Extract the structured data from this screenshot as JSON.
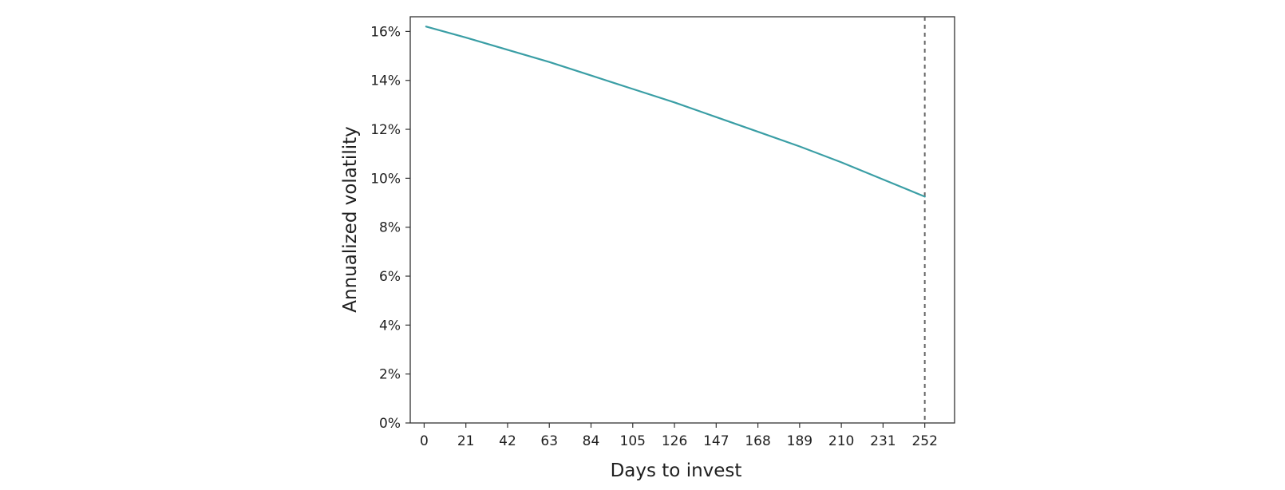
{
  "chart_data": {
    "type": "line",
    "title": "",
    "xlabel": "Days to invest",
    "ylabel": "Annualized volatility",
    "xlim": [
      -7,
      267
    ],
    "ylim": [
      0,
      16.6
    ],
    "x_ticks": [
      0,
      21,
      42,
      63,
      84,
      105,
      126,
      147,
      168,
      189,
      210,
      231,
      252
    ],
    "y_ticks": [
      0,
      2,
      4,
      6,
      8,
      10,
      12,
      14,
      16
    ],
    "y_tick_labels": [
      "0%",
      "2%",
      "4%",
      "6%",
      "8%",
      "10%",
      "12%",
      "14%",
      "16%"
    ],
    "grid": false,
    "legend": "none",
    "reference_line": {
      "axis": "x",
      "value": 252,
      "style": "dashed",
      "color": "#666666"
    },
    "series": [
      {
        "color": "#3a9ea5",
        "x": [
          1,
          21,
          42,
          63,
          84,
          105,
          126,
          147,
          168,
          189,
          210,
          231,
          252
        ],
        "y": [
          16.2,
          15.75,
          15.25,
          14.75,
          14.2,
          13.65,
          13.1,
          12.5,
          11.9,
          11.3,
          10.65,
          9.95,
          9.25
        ]
      }
    ]
  }
}
